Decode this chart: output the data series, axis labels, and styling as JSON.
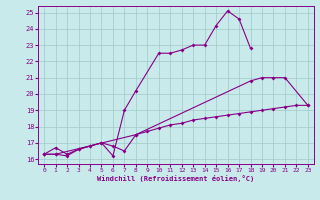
{
  "xlabel": "Windchill (Refroidissement éolien,°C)",
  "bg_color": "#c8eaea",
  "line_color": "#880088",
  "ylim": [
    15.7,
    25.4
  ],
  "xlim": [
    -0.5,
    23.5
  ],
  "yticks": [
    16,
    17,
    18,
    19,
    20,
    21,
    22,
    23,
    24,
    25
  ],
  "xticks": [
    0,
    1,
    2,
    3,
    4,
    5,
    6,
    7,
    8,
    9,
    10,
    11,
    12,
    13,
    14,
    15,
    16,
    17,
    18,
    19,
    20,
    21,
    22,
    23
  ],
  "line1_x": [
    0,
    1,
    2,
    3,
    4,
    5,
    6,
    7,
    8,
    10,
    11,
    12,
    13,
    14,
    15,
    16,
    17,
    18
  ],
  "line1_y": [
    16.3,
    16.7,
    16.3,
    16.6,
    16.8,
    17.0,
    16.2,
    19.0,
    20.2,
    22.5,
    22.5,
    22.7,
    23.0,
    23.0,
    24.2,
    25.1,
    24.6,
    22.8
  ],
  "line2_x": [
    0,
    1,
    2,
    3,
    4,
    5,
    6,
    7,
    8,
    18,
    19,
    20,
    21,
    23
  ],
  "line2_y": [
    16.3,
    16.3,
    16.2,
    16.6,
    16.8,
    17.0,
    16.8,
    16.5,
    17.5,
    20.8,
    21.0,
    21.0,
    21.0,
    19.3
  ],
  "line3_x": [
    0,
    1,
    8,
    9,
    10,
    11,
    12,
    13,
    14,
    15,
    16,
    17,
    18,
    19,
    20,
    21,
    22,
    23
  ],
  "line3_y": [
    16.3,
    16.3,
    17.5,
    17.7,
    17.9,
    18.1,
    18.2,
    18.4,
    18.5,
    18.6,
    18.7,
    18.8,
    18.9,
    19.0,
    19.1,
    19.2,
    19.3,
    19.3
  ],
  "grid_color": "#a0c8c8",
  "marker": "D",
  "markersize": 2.0,
  "linewidth": 0.8
}
